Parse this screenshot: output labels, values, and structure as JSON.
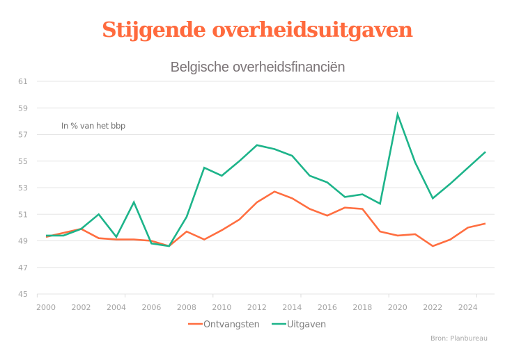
{
  "header": {
    "title": "Stijgende overheidsuitgaven",
    "subtitle": "Belgische overheidsfinanciën"
  },
  "chart_data": {
    "type": "line",
    "title": "Belgische overheidsfinanciën",
    "annotation": "In % van het bbp",
    "xlabel": "",
    "ylabel": "In % van het bbp",
    "x": [
      2000,
      2001,
      2002,
      2003,
      2004,
      2005,
      2006,
      2007,
      2008,
      2009,
      2010,
      2011,
      2012,
      2013,
      2014,
      2015,
      2016,
      2017,
      2018,
      2019,
      2020,
      2021,
      2022,
      2023,
      2024,
      2025
    ],
    "xlim": [
      2000,
      2025
    ],
    "x_ticks": [
      "2000",
      "2002",
      "2004",
      "2006",
      "2008",
      "2010",
      "2012",
      "2014",
      "2016",
      "2018",
      "2020",
      "2022",
      "2024"
    ],
    "ylim": [
      45,
      61
    ],
    "y_ticks": [
      "45",
      "47",
      "49",
      "51",
      "53",
      "55",
      "57",
      "59",
      "61"
    ],
    "grid": true,
    "legend_position": "bottom-center",
    "series": [
      {
        "name": "Ontvangsten",
        "color": "#ff6e40",
        "values": [
          49.3,
          49.6,
          49.9,
          49.2,
          49.1,
          49.1,
          49.0,
          48.6,
          49.7,
          49.1,
          49.8,
          50.6,
          51.9,
          52.7,
          52.2,
          51.4,
          50.9,
          51.5,
          51.4,
          49.7,
          49.4,
          49.5,
          48.6,
          49.1,
          50.0,
          50.3
        ]
      },
      {
        "name": "Uitgaven",
        "color": "#1db48a",
        "values": [
          49.4,
          49.4,
          49.9,
          51.0,
          49.3,
          51.9,
          48.8,
          48.6,
          50.8,
          54.5,
          53.9,
          55.0,
          56.2,
          55.9,
          55.4,
          53.9,
          53.4,
          52.3,
          52.5,
          51.8,
          58.5,
          54.9,
          52.2,
          53.3,
          54.5,
          55.7
        ]
      }
    ],
    "source": "Bron: Planbureau"
  }
}
